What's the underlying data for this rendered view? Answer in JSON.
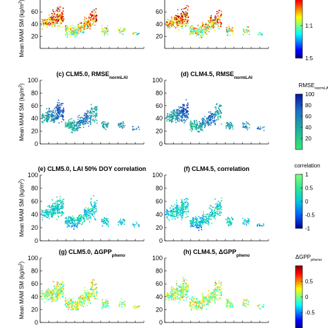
{
  "chart_data": [
    {
      "type": "scatter",
      "title": "",
      "ylabel": "Mean MAM SM (kg/m²)",
      "ylim": [
        0,
        100
      ],
      "yticks": [
        20,
        40,
        60,
        80
      ],
      "color_key": "ratio",
      "series": []
    },
    {
      "type": "scatter",
      "title": "",
      "ylabel": "",
      "ylim": [
        0,
        100
      ],
      "yticks": [
        20,
        40,
        60,
        80
      ],
      "color_key": "ratio",
      "series": []
    },
    {
      "type": "scatter",
      "title": "(c) CLM5.0, RMSE",
      "title_sub": "normLAI",
      "ylabel": "Mean MAM SM (kg/m²)",
      "ylim": [
        0,
        100
      ],
      "yticks": [
        0,
        20,
        40,
        60,
        80,
        100
      ],
      "color_key": "rmse",
      "series": []
    },
    {
      "type": "scatter",
      "title": "(d) CLM4.5, RMSE",
      "title_sub": "normLAI",
      "ylabel": "",
      "ylim": [
        0,
        100
      ],
      "yticks": [
        0,
        20,
        40,
        60,
        80,
        100
      ],
      "color_key": "rmse",
      "series": []
    },
    {
      "type": "scatter",
      "title": "(e) CLM5.0, LAI 50% DOY correlation",
      "ylabel": "Mean MAM SM (kg/m²)",
      "ylim": [
        0,
        100
      ],
      "yticks": [
        0,
        20,
        40,
        60,
        80,
        100
      ],
      "color_key": "corr",
      "series": []
    },
    {
      "type": "scatter",
      "title": "(f) CLM4.5, correlation",
      "ylabel": "",
      "ylim": [
        0,
        100
      ],
      "yticks": [
        0,
        20,
        40,
        60,
        80,
        100
      ],
      "color_key": "corr",
      "series": []
    },
    {
      "type": "scatter",
      "title": "(g) CLM5.0, ΔGPP",
      "title_sub": "pheno",
      "ylabel": "Mean MAM SM (kg/m²)",
      "ylim": [
        0,
        100
      ],
      "yticks": [
        0,
        20,
        40,
        60,
        80,
        100
      ],
      "color_key": "dgpp",
      "series": []
    },
    {
      "type": "scatter",
      "title": "(h) CLM4.5, ΔGPP",
      "title_sub": "pheno",
      "ylabel": "",
      "ylim": [
        0,
        100
      ],
      "yticks": [
        0,
        20,
        40,
        60,
        80,
        100
      ],
      "color_key": "dgpp",
      "series": []
    }
  ],
  "colorbars": {
    "ratio": {
      "title": "",
      "ticks": [
        {
          "label": "1:1",
          "frac": 0.5
        },
        {
          "label": "1:5",
          "frac": 1.0
        }
      ]
    },
    "rmse": {
      "title": "RMSE",
      "title_sub": "normLAI",
      "ticks": [
        {
          "label": "100",
          "frac": 0.0
        },
        {
          "label": "80",
          "frac": 0.2
        },
        {
          "label": "60",
          "frac": 0.4
        },
        {
          "label": "40",
          "frac": 0.6
        },
        {
          "label": "20",
          "frac": 0.8
        }
      ]
    },
    "corr": {
      "title": "correlation",
      "ticks": [
        {
          "label": "1",
          "frac": 0.0
        },
        {
          "label": "0.5",
          "frac": 0.25
        },
        {
          "label": "0",
          "frac": 0.5
        },
        {
          "label": "-0.5",
          "frac": 0.75
        },
        {
          "label": "-1",
          "frac": 1.0
        }
      ]
    },
    "dgpp": {
      "title": "ΔGPP",
      "title_sub": "pheno",
      "ticks": [
        {
          "label": "0.5",
          "frac": 0.25
        },
        {
          "label": "0",
          "frac": 0.5
        },
        {
          "label": "-0.5",
          "frac": 0.75
        }
      ]
    }
  },
  "colors": {
    "jet_low": "#00008f",
    "jet_high": "#800000",
    "rmse_low": "#1e8c5a",
    "rmse_high": "#0a14a0",
    "axis": "#000000"
  }
}
